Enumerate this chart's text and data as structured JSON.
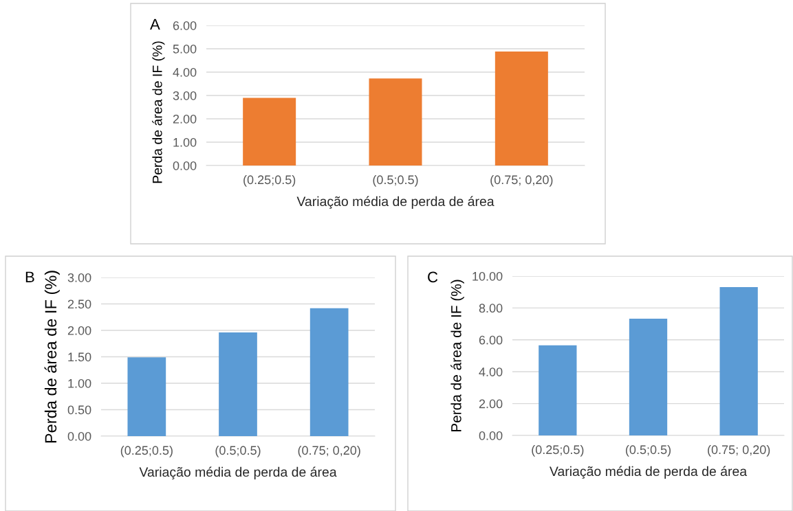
{
  "chart_data": [
    {
      "type": "bar",
      "annotations": [
        "A"
      ],
      "xlabel": "Variação média de perda de área",
      "ylabel": "Perda de área de IF (%)",
      "categories": [
        "(0.25;0.5)",
        "(0.5;0.5)",
        "(0.75; 0,20)"
      ],
      "values": [
        2.9,
        3.73,
        4.88
      ],
      "color": "#ed7d31",
      "ylim": [
        0,
        6
      ],
      "yticks": [
        {
          "value": 0,
          "label": "0.00"
        },
        {
          "value": 1,
          "label": "1.00"
        },
        {
          "value": 2,
          "label": "2.00"
        },
        {
          "value": 3,
          "label": "3.00"
        },
        {
          "value": 4,
          "label": "4.00"
        },
        {
          "value": 5,
          "label": "5.00"
        },
        {
          "value": 6,
          "label": "6.00"
        }
      ],
      "grid": "y"
    },
    {
      "type": "bar",
      "annotations": [
        "B"
      ],
      "xlabel": "Variação média de perda de área",
      "ylabel": "Perda de área de IF (%)",
      "categories": [
        "(0.25;0.5)",
        "(0.5;0.5)",
        "(0.75; 0,20)"
      ],
      "values": [
        1.49,
        1.96,
        2.42
      ],
      "color": "#5b9bd5",
      "ylim": [
        0,
        3
      ],
      "yticks": [
        {
          "value": 0,
          "label": "0.00"
        },
        {
          "value": 0.5,
          "label": "0.50"
        },
        {
          "value": 1,
          "label": "1.00"
        },
        {
          "value": 1.5,
          "label": "1.50"
        },
        {
          "value": 2,
          "label": "2.00"
        },
        {
          "value": 2.5,
          "label": "2.50"
        },
        {
          "value": 3,
          "label": "3.00"
        }
      ],
      "grid": "y"
    },
    {
      "type": "bar",
      "annotations": [
        "C"
      ],
      "xlabel": "Variação média de perda de área",
      "ylabel": "Perda de área de IF (%)",
      "categories": [
        "(0.25;0.5)",
        "(0.5;0.5)",
        "(0.75; 0,20)"
      ],
      "values": [
        5.66,
        7.33,
        9.31
      ],
      "color": "#5b9bd5",
      "ylim": [
        0,
        10
      ],
      "yticks": [
        {
          "value": 0,
          "label": "0.00"
        },
        {
          "value": 2,
          "label": "2.00"
        },
        {
          "value": 4,
          "label": "4.00"
        },
        {
          "value": 6,
          "label": "6.00"
        },
        {
          "value": 8,
          "label": "8.00"
        },
        {
          "value": 10,
          "label": "10.00"
        }
      ],
      "grid": "y"
    }
  ]
}
